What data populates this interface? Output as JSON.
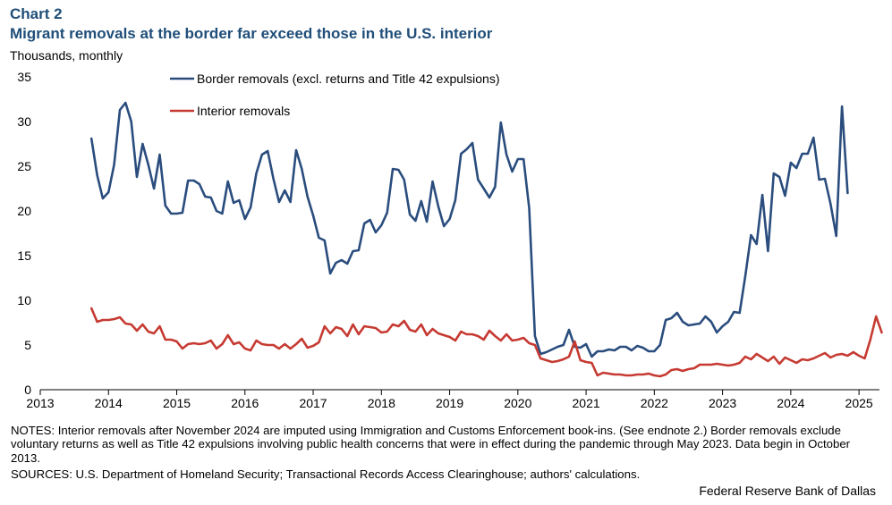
{
  "header": {
    "chart_label": "Chart 2",
    "title": "Migrant removals at the border far exceed those in the U.S. interior",
    "unit": "Thousands, monthly"
  },
  "footer": {
    "notes": "NOTES: Interior removals after November 2024 are imputed using Immigration and Customs Enforcement book-ins. (See endnote 2.) Border removals exclude voluntary returns as well as Title 42 expulsions involving public health concerns that were in effect during the pandemic through May 2023. Data begin in October 2013.",
    "sources": "SOURCES: U.S. Department of Homeland Security; Transactional Records Access Clearinghouse; authors' calculations.",
    "credit": "Federal Reserve Bank of Dallas"
  },
  "chart_data": {
    "type": "line",
    "title": "Migrant removals at the border far exceed those in the U.S. interior",
    "ylabel": "Thousands, monthly",
    "xlabel": "",
    "ylim": [
      0,
      35
    ],
    "yticks": [
      0,
      5,
      10,
      15,
      20,
      25,
      30,
      35
    ],
    "xlim": [
      2013,
      2025.3
    ],
    "xticks": [
      "2013",
      "2014",
      "2015",
      "2016",
      "2017",
      "2018",
      "2019",
      "2020",
      "2021",
      "2022",
      "2023",
      "2024",
      "2025"
    ],
    "grid": false,
    "legend_position": "top-center",
    "series": [
      {
        "name": "Border removals (excl. returns and Title 42 expulsions)",
        "color": "#2a4d7e",
        "start": "2013-10",
        "frequency": "monthly",
        "values": [
          28.1,
          24.0,
          21.4,
          22.1,
          25.2,
          31.3,
          32.1,
          30.0,
          23.8,
          27.5,
          25.2,
          22.5,
          26.3,
          20.6,
          19.7,
          19.7,
          19.8,
          23.4,
          23.4,
          23.0,
          21.6,
          21.5,
          20.0,
          19.7,
          23.3,
          20.9,
          21.2,
          19.1,
          20.4,
          24.2,
          26.3,
          26.7,
          23.6,
          21.0,
          22.3,
          21.0,
          26.8,
          24.7,
          21.6,
          19.5,
          17.0,
          16.7,
          13.0,
          14.2,
          14.5,
          14.1,
          15.5,
          15.6,
          18.6,
          19.0,
          17.6,
          18.4,
          19.8,
          24.7,
          24.6,
          23.5,
          19.6,
          18.9,
          21.1,
          18.8,
          23.3,
          20.5,
          18.3,
          19.1,
          21.2,
          26.4,
          26.9,
          27.6,
          23.5,
          22.5,
          21.5,
          22.7,
          29.9,
          26.3,
          24.4,
          25.8,
          25.8,
          20.3,
          6.0,
          4.0,
          4.2,
          4.5,
          4.8,
          5.0,
          6.7,
          4.8,
          4.7,
          5.1,
          3.7,
          4.3,
          4.3,
          4.5,
          4.4,
          4.8,
          4.8,
          4.4,
          4.9,
          4.7,
          4.3,
          4.3,
          5.0,
          7.8,
          8.0,
          8.6,
          7.6,
          7.2,
          7.3,
          7.4,
          8.2,
          7.6,
          6.4,
          7.1,
          7.6,
          8.7,
          8.6,
          12.7,
          17.3,
          16.3,
          21.8,
          15.5,
          24.2,
          23.8,
          21.7,
          25.4,
          24.8,
          26.4,
          26.4,
          28.2,
          23.5,
          23.6,
          20.8,
          17.2,
          31.7,
          22.0
        ]
      },
      {
        "name": "Interior removals",
        "color": "#c63a32",
        "start": "2013-10",
        "frequency": "monthly",
        "values": [
          9.1,
          7.6,
          7.8,
          7.8,
          7.9,
          8.1,
          7.4,
          7.3,
          6.6,
          7.3,
          6.5,
          6.3,
          7.1,
          5.6,
          5.6,
          5.4,
          4.6,
          5.1,
          5.2,
          5.1,
          5.2,
          5.5,
          4.6,
          5.1,
          6.1,
          5.1,
          5.3,
          4.6,
          4.4,
          5.5,
          5.1,
          5.0,
          5.0,
          4.6,
          5.1,
          4.6,
          5.1,
          5.7,
          4.7,
          4.9,
          5.3,
          7.1,
          6.3,
          7.0,
          6.8,
          6.0,
          7.3,
          6.2,
          7.1,
          7.0,
          6.9,
          6.4,
          6.5,
          7.3,
          7.1,
          7.7,
          6.7,
          6.5,
          7.3,
          6.1,
          6.8,
          6.3,
          6.1,
          5.9,
          5.5,
          6.5,
          6.2,
          6.2,
          6.0,
          5.6,
          6.6,
          6.0,
          5.5,
          6.2,
          5.5,
          5.6,
          5.8,
          5.2,
          5.0,
          3.5,
          3.3,
          3.1,
          3.2,
          3.4,
          3.7,
          5.4,
          3.3,
          3.1,
          3.0,
          1.6,
          1.9,
          1.8,
          1.7,
          1.7,
          1.6,
          1.6,
          1.7,
          1.7,
          1.8,
          1.6,
          1.5,
          1.7,
          2.2,
          2.3,
          2.1,
          2.3,
          2.4,
          2.8,
          2.8,
          2.8,
          2.9,
          2.8,
          2.7,
          2.8,
          3.0,
          3.7,
          3.4,
          4.0,
          3.6,
          3.2,
          3.7,
          2.9,
          3.6,
          3.3,
          3.0,
          3.4,
          3.3,
          3.5,
          3.8,
          4.1,
          3.6,
          3.9,
          4.0,
          3.8,
          4.2,
          3.8,
          3.5,
          5.6,
          8.2,
          6.4
        ]
      }
    ]
  }
}
